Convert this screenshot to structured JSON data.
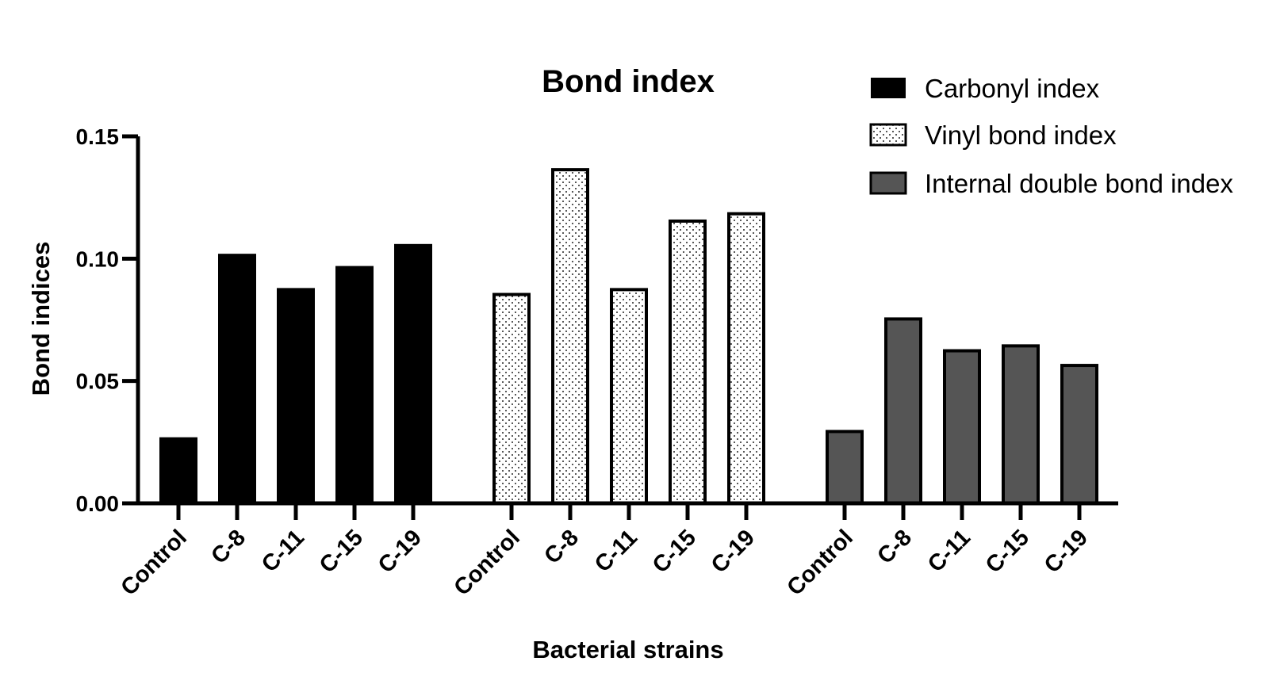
{
  "chart_data": {
    "type": "bar",
    "title": "Bond index",
    "xlabel": "Bacterial strains",
    "ylabel": "Bond indices",
    "ylim": [
      0,
      0.15
    ],
    "yticks": [
      "0.00",
      "0.05",
      "0.10",
      "0.15"
    ],
    "ytick_values": [
      0,
      0.05,
      0.1,
      0.15
    ],
    "grid": false,
    "legend_position": "top-right",
    "categories": [
      "Control",
      "C-8",
      "C-11",
      "C-15",
      "C-19"
    ],
    "series": [
      {
        "name": "Carbonyl index",
        "values": [
          0.027,
          0.102,
          0.088,
          0.097,
          0.106
        ],
        "fill": "#000000",
        "pattern": "solid"
      },
      {
        "name": "Vinyl bond index",
        "values": [
          0.086,
          0.137,
          0.088,
          0.116,
          0.119
        ],
        "fill": "#ffffff",
        "pattern": "dotted"
      },
      {
        "name": "Internal double bond index",
        "values": [
          0.03,
          0.076,
          0.063,
          0.065,
          0.057
        ],
        "fill": "#555555",
        "pattern": "solid"
      }
    ]
  }
}
